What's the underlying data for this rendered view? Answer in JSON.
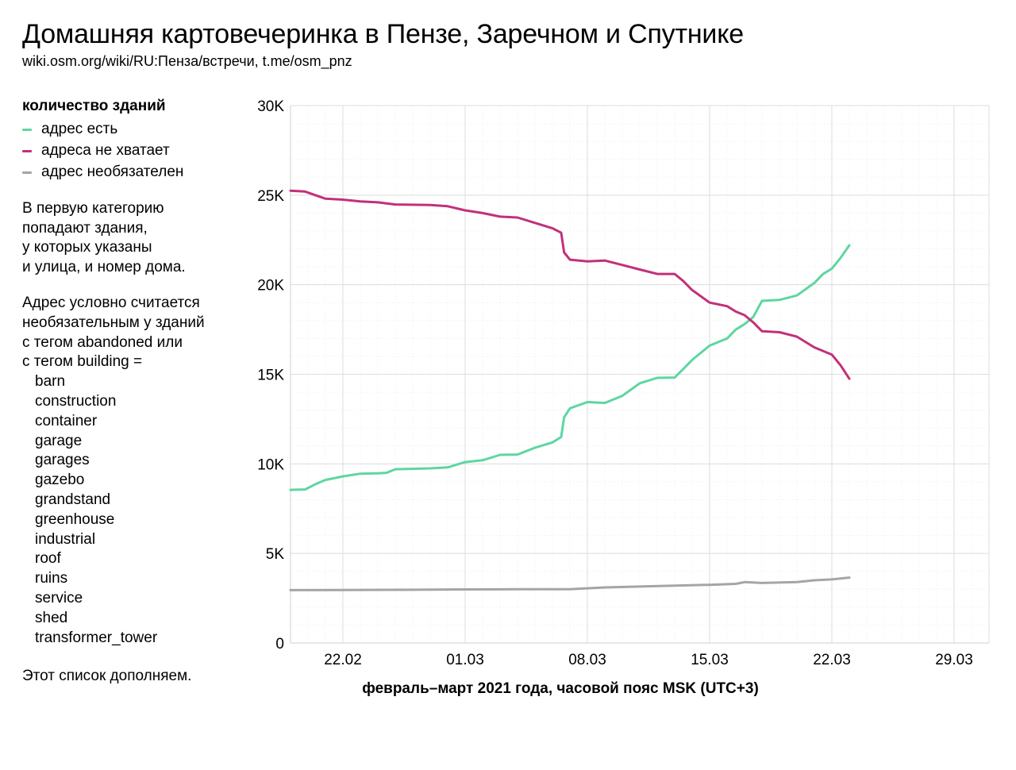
{
  "header": {
    "title": "Домашняя картовечеринка в Пензе, Заречном и Спутнике",
    "subtitle": "wiki.osm.org/wiki/RU:Пенза/встречи, t.me/osm_pnz"
  },
  "legend": {
    "title": "количество зданий",
    "items": [
      {
        "label": "адрес есть",
        "color": "#5ed6a0"
      },
      {
        "label": "адреса не хватает",
        "color": "#c2307a"
      },
      {
        "label": "адрес необязателен",
        "color": "#a5a5a5"
      }
    ]
  },
  "notes": {
    "para1": [
      "В первую категорию",
      "попадают здания,",
      "у которых указаны",
      "и улица, и номер дома."
    ],
    "para2": [
      "Адрес условно считается",
      "необязательным у зданий",
      "с тегом abandoned или",
      "с тегом building ="
    ],
    "tags": [
      "barn",
      "construction",
      "container",
      "garage",
      "garages",
      "gazebo",
      "grandstand",
      "greenhouse",
      "industrial",
      "roof",
      "ruins",
      "service",
      "shed",
      "transformer_tower"
    ],
    "footer": "Этот список дополняем."
  },
  "chart_data": {
    "type": "line",
    "title": "",
    "xlabel": "февраль–март 2021 года, часовой пояс MSK (UTC+3)",
    "ylabel": "",
    "xlim": [
      "2021-02-19",
      "2021-03-31"
    ],
    "ylim": [
      0,
      30000
    ],
    "x_ticks": [
      {
        "date": "2021-02-22",
        "label": "22.02"
      },
      {
        "date": "2021-03-01",
        "label": "01.03"
      },
      {
        "date": "2021-03-08",
        "label": "08.03"
      },
      {
        "date": "2021-03-15",
        "label": "15.03"
      },
      {
        "date": "2021-03-22",
        "label": "22.03"
      },
      {
        "date": "2021-03-29",
        "label": "29.03"
      }
    ],
    "y_ticks": [
      {
        "value": 0,
        "label": "0"
      },
      {
        "value": 5000,
        "label": "5K"
      },
      {
        "value": 10000,
        "label": "10K"
      },
      {
        "value": 15000,
        "label": "15K"
      },
      {
        "value": 20000,
        "label": "20K"
      },
      {
        "value": 25000,
        "label": "25K"
      },
      {
        "value": 30000,
        "label": "30K"
      }
    ],
    "grid": true,
    "series": [
      {
        "name": "адрес есть",
        "color": "#5ed6a0",
        "points": [
          [
            "2021-02-19 00:00",
            8550
          ],
          [
            "2021-02-19 20:00",
            8570
          ],
          [
            "2021-02-20 12:00",
            8900
          ],
          [
            "2021-02-21 00:00",
            9100
          ],
          [
            "2021-02-22 00:00",
            9300
          ],
          [
            "2021-02-23 00:00",
            9450
          ],
          [
            "2021-02-24 00:00",
            9470
          ],
          [
            "2021-02-24 12:00",
            9500
          ],
          [
            "2021-02-25 00:00",
            9700
          ],
          [
            "2021-02-27 00:00",
            9750
          ],
          [
            "2021-02-28 00:00",
            9800
          ],
          [
            "2021-03-01 00:00",
            10100
          ],
          [
            "2021-03-02 00:00",
            10200
          ],
          [
            "2021-03-03 00:00",
            10500
          ],
          [
            "2021-03-04 00:00",
            10520
          ],
          [
            "2021-03-05 00:00",
            10900
          ],
          [
            "2021-03-06 00:00",
            11200
          ],
          [
            "2021-03-06 12:00",
            11500
          ],
          [
            "2021-03-06 16:00",
            12600
          ],
          [
            "2021-03-07 00:00",
            13100
          ],
          [
            "2021-03-08 00:00",
            13450
          ],
          [
            "2021-03-09 00:00",
            13400
          ],
          [
            "2021-03-10 00:00",
            13800
          ],
          [
            "2021-03-11 00:00",
            14500
          ],
          [
            "2021-03-12 00:00",
            14800
          ],
          [
            "2021-03-13 00:00",
            14820
          ],
          [
            "2021-03-13 12:00",
            15300
          ],
          [
            "2021-03-14 00:00",
            15800
          ],
          [
            "2021-03-15 00:00",
            16600
          ],
          [
            "2021-03-16 00:00",
            17000
          ],
          [
            "2021-03-16 12:00",
            17500
          ],
          [
            "2021-03-17 00:00",
            17800
          ],
          [
            "2021-03-17 12:00",
            18200
          ],
          [
            "2021-03-18 00:00",
            19100
          ],
          [
            "2021-03-19 00:00",
            19150
          ],
          [
            "2021-03-20 00:00",
            19400
          ],
          [
            "2021-03-21 00:00",
            20100
          ],
          [
            "2021-03-21 12:00",
            20600
          ],
          [
            "2021-03-22 00:00",
            20900
          ],
          [
            "2021-03-22 12:00",
            21500
          ],
          [
            "2021-03-23 00:00",
            22200
          ]
        ]
      },
      {
        "name": "адреса не хватает",
        "color": "#c2307a",
        "points": [
          [
            "2021-02-19 00:00",
            25250
          ],
          [
            "2021-02-19 20:00",
            25200
          ],
          [
            "2021-02-21 00:00",
            24800
          ],
          [
            "2021-02-22 00:00",
            24750
          ],
          [
            "2021-02-23 00:00",
            24650
          ],
          [
            "2021-02-24 00:00",
            24600
          ],
          [
            "2021-02-25 00:00",
            24480
          ],
          [
            "2021-02-27 00:00",
            24450
          ],
          [
            "2021-02-28 00:00",
            24380
          ],
          [
            "2021-03-01 00:00",
            24150
          ],
          [
            "2021-03-02 00:00",
            24000
          ],
          [
            "2021-03-03 00:00",
            23800
          ],
          [
            "2021-03-04 00:00",
            23750
          ],
          [
            "2021-03-05 00:00",
            23450
          ],
          [
            "2021-03-06 00:00",
            23150
          ],
          [
            "2021-03-06 12:00",
            22900
          ],
          [
            "2021-03-06 16:00",
            21800
          ],
          [
            "2021-03-07 00:00",
            21400
          ],
          [
            "2021-03-08 00:00",
            21300
          ],
          [
            "2021-03-09 00:00",
            21350
          ],
          [
            "2021-03-10 00:00",
            21100
          ],
          [
            "2021-03-11 00:00",
            20850
          ],
          [
            "2021-03-12 00:00",
            20600
          ],
          [
            "2021-03-13 00:00",
            20600
          ],
          [
            "2021-03-13 12:00",
            20200
          ],
          [
            "2021-03-14 00:00",
            19700
          ],
          [
            "2021-03-15 00:00",
            19000
          ],
          [
            "2021-03-16 00:00",
            18800
          ],
          [
            "2021-03-16 12:00",
            18500
          ],
          [
            "2021-03-17 00:00",
            18300
          ],
          [
            "2021-03-17 12:00",
            17900
          ],
          [
            "2021-03-18 00:00",
            17400
          ],
          [
            "2021-03-19 00:00",
            17350
          ],
          [
            "2021-03-20 00:00",
            17100
          ],
          [
            "2021-03-21 00:00",
            16500
          ],
          [
            "2021-03-22 00:00",
            16100
          ],
          [
            "2021-03-22 12:00",
            15500
          ],
          [
            "2021-03-23 00:00",
            14750
          ]
        ]
      },
      {
        "name": "адрес необязателен",
        "color": "#a5a5a5",
        "points": [
          [
            "2021-02-19 00:00",
            2950
          ],
          [
            "2021-02-22 00:00",
            2960
          ],
          [
            "2021-02-25 00:00",
            2970
          ],
          [
            "2021-03-01 00:00",
            2990
          ],
          [
            "2021-03-04 00:00",
            3000
          ],
          [
            "2021-03-07 00:00",
            3000
          ],
          [
            "2021-03-09 00:00",
            3100
          ],
          [
            "2021-03-11 00:00",
            3150
          ],
          [
            "2021-03-13 00:00",
            3200
          ],
          [
            "2021-03-15 00:00",
            3250
          ],
          [
            "2021-03-16 12:00",
            3300
          ],
          [
            "2021-03-17 00:00",
            3400
          ],
          [
            "2021-03-18 00:00",
            3350
          ],
          [
            "2021-03-20 00:00",
            3400
          ],
          [
            "2021-03-21 00:00",
            3500
          ],
          [
            "2021-03-22 00:00",
            3550
          ],
          [
            "2021-03-23 00:00",
            3650
          ]
        ]
      }
    ]
  }
}
